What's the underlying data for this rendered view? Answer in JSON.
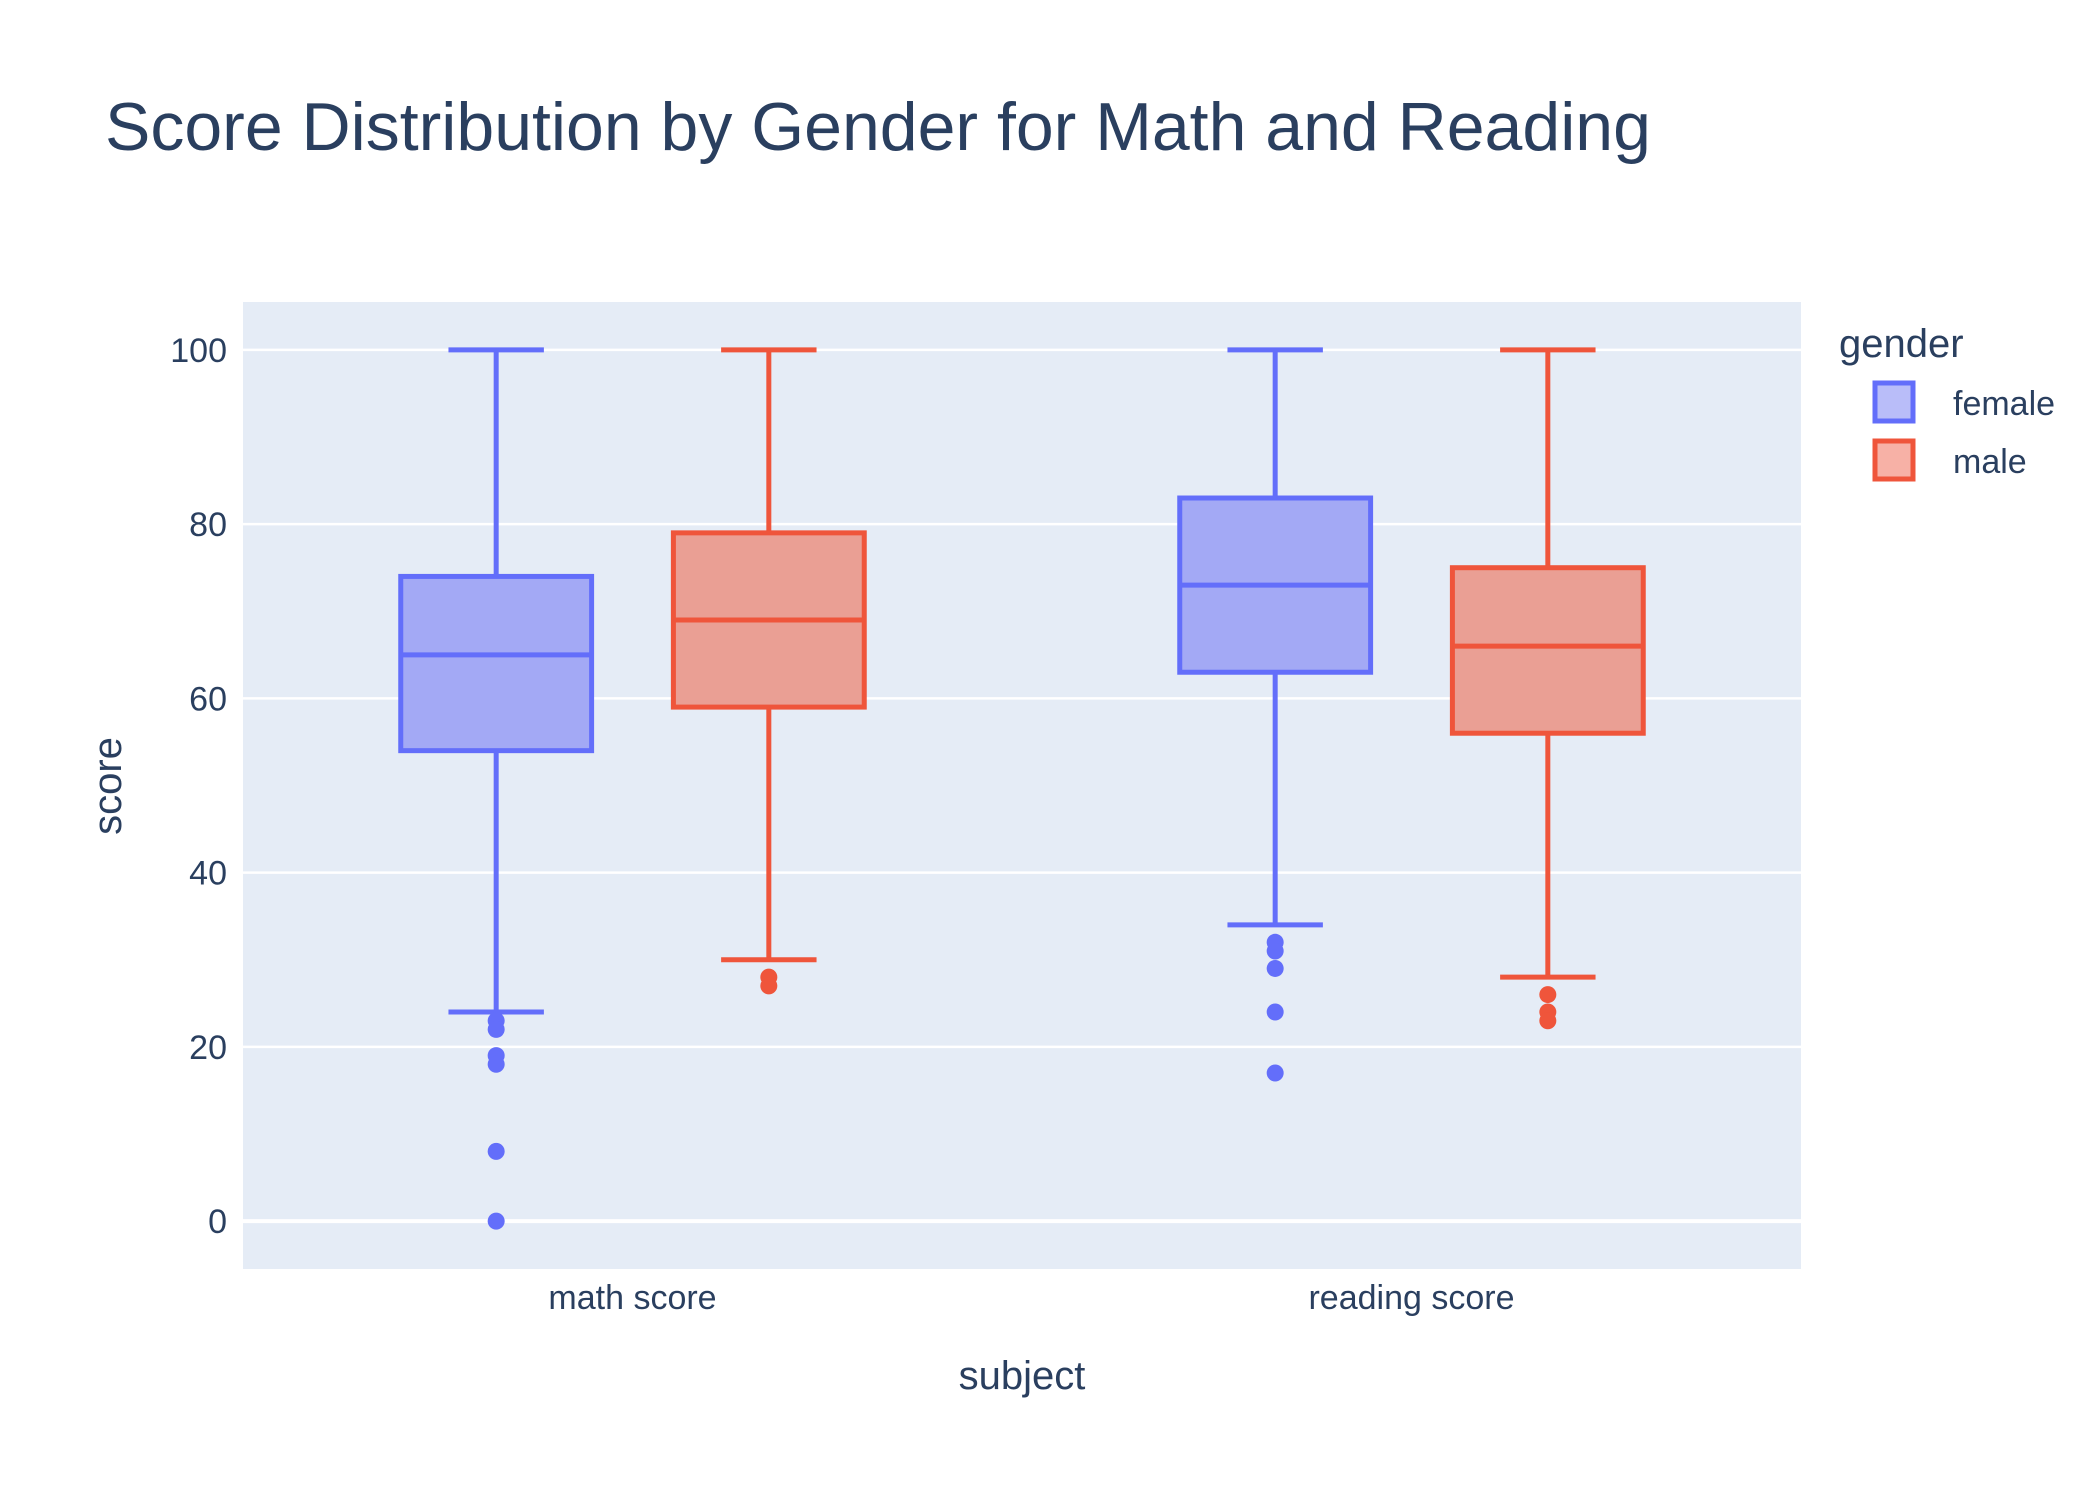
{
  "chart_data": {
    "type": "box",
    "title": "Score Distribution by Gender for Math and Reading",
    "xlabel": "subject",
    "ylabel": "score",
    "categories": [
      "math score",
      "reading score"
    ],
    "ylim": [
      -5.5,
      105.5
    ],
    "yticks": [
      0,
      20,
      40,
      60,
      80,
      100
    ],
    "grid": true,
    "legend": {
      "title": "gender",
      "placement": "top-right"
    },
    "series": [
      {
        "name": "female",
        "color": "#636efa",
        "fill": "#a3a9f5",
        "boxes": [
          {
            "category": "math score",
            "lowerfence": 24,
            "q1": 54,
            "median": 65,
            "q3": 74,
            "upperfence": 100,
            "outliers": [
              23,
              22,
              19,
              18,
              8,
              0
            ]
          },
          {
            "category": "reading score",
            "lowerfence": 34,
            "q1": 63,
            "median": 73,
            "q3": 83,
            "upperfence": 100,
            "outliers": [
              32,
              31,
              29,
              24,
              17
            ]
          }
        ]
      },
      {
        "name": "male",
        "color": "#ef553b",
        "fill": "#ea9f94",
        "boxes": [
          {
            "category": "math score",
            "lowerfence": 30,
            "q1": 59,
            "median": 69,
            "q3": 79,
            "upperfence": 100,
            "outliers": [
              28,
              27
            ]
          },
          {
            "category": "reading score",
            "lowerfence": 28,
            "q1": 56,
            "median": 66,
            "q3": 75,
            "upperfence": 100,
            "outliers": [
              26,
              24,
              23
            ]
          }
        ]
      }
    ]
  }
}
